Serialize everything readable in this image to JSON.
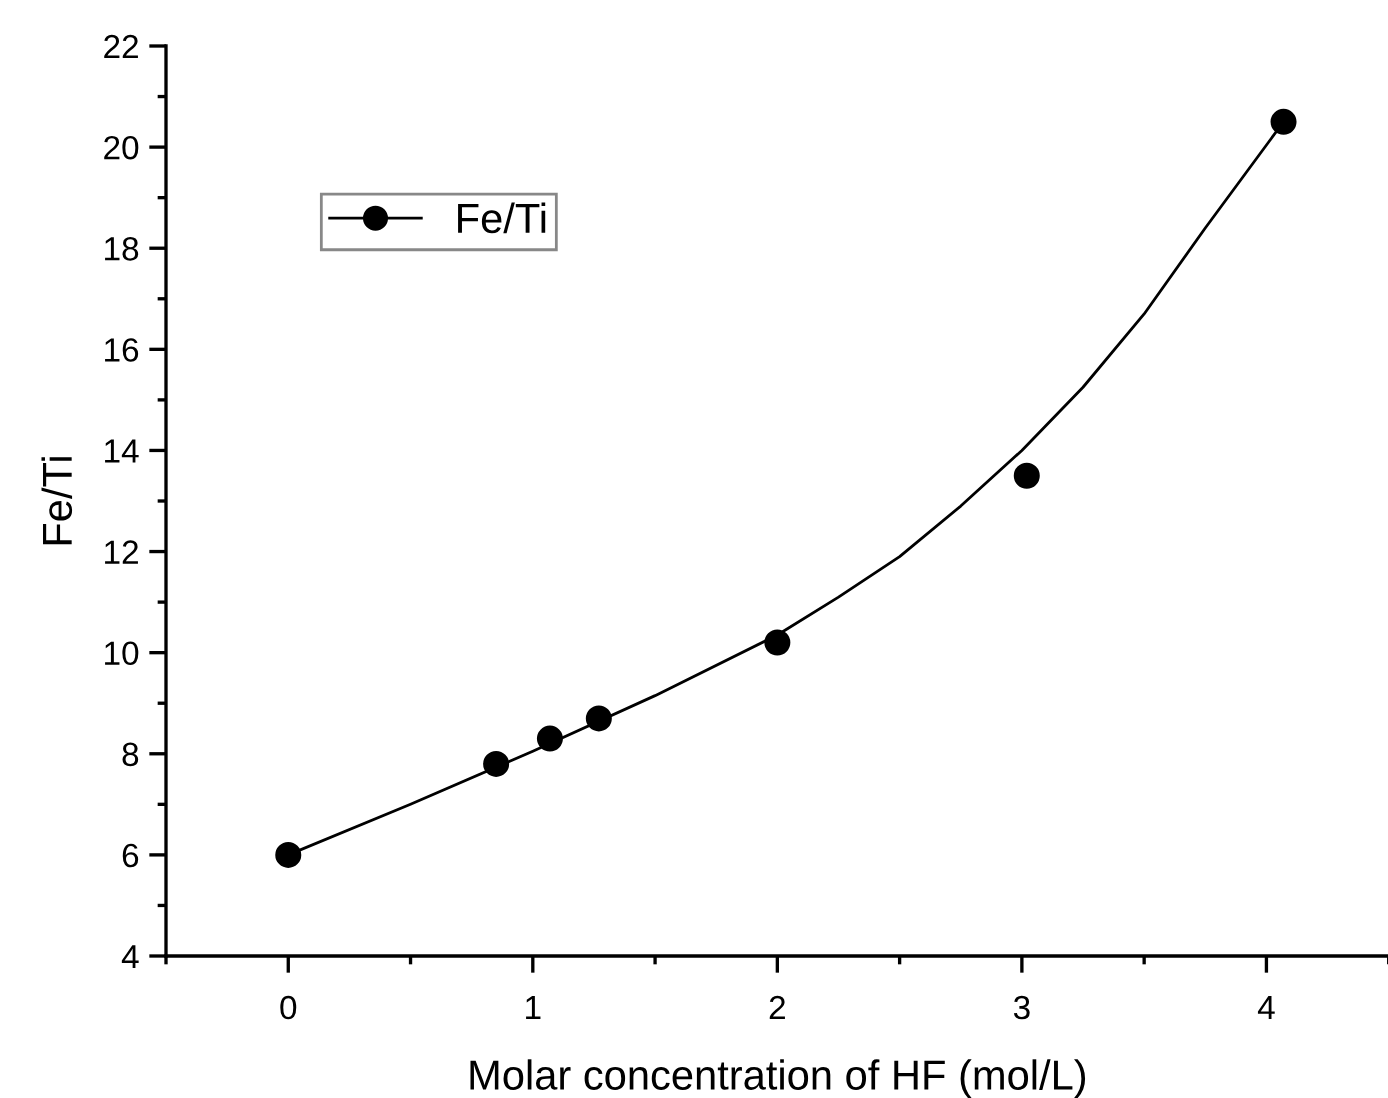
{
  "chart_data": {
    "type": "scatter",
    "xlabel": "Molar concentration of HF (mol/L)",
    "ylabel": "Fe/Ti",
    "xlim": [
      -0.5,
      4.5
    ],
    "xticks": [
      0,
      1,
      2,
      3,
      4
    ],
    "ylim": [
      4,
      22
    ],
    "yticks": [
      4,
      6,
      8,
      10,
      12,
      14,
      16,
      18,
      20,
      22
    ],
    "grid": false,
    "legend": "top left",
    "series": [
      {
        "name": "Fe/Ti",
        "color": "#000000",
        "marker": "circle",
        "x": [
          0,
          0.85,
          1.07,
          1.27,
          2.0,
          3.02,
          4.07
        ],
        "values": [
          6.0,
          7.8,
          8.3,
          8.7,
          10.2,
          13.5,
          20.5
        ]
      },
      {
        "type": "line",
        "color": "#000000",
        "marker": "none",
        "line_style": "solid",
        "x": [
          0,
          0.5,
          1.0,
          1.5,
          2.0,
          2.25,
          2.5,
          2.75,
          3.0,
          3.25,
          3.5,
          3.75,
          4.07
        ],
        "values": [
          6.0,
          7.0,
          8.05,
          9.15,
          10.35,
          11.1,
          11.9,
          12.9,
          14.0,
          15.25,
          16.7,
          18.4,
          20.5
        ]
      }
    ]
  }
}
